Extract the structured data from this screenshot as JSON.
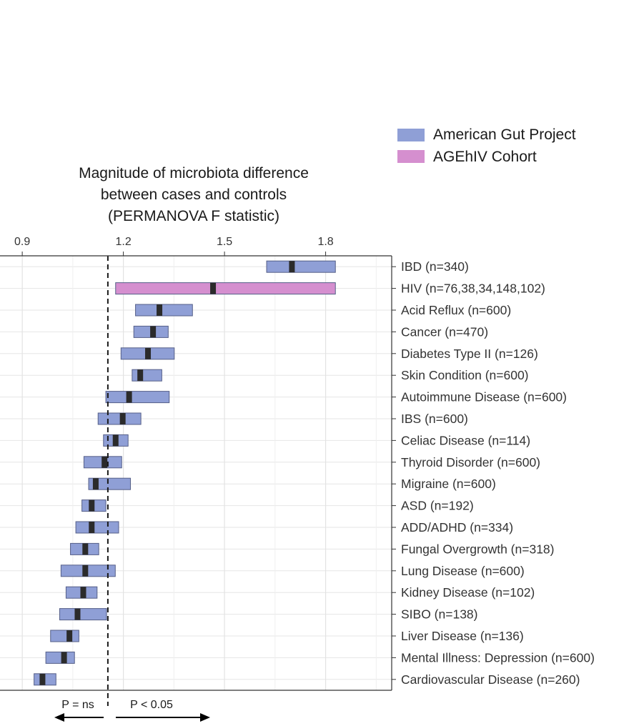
{
  "chart_data": {
    "type": "bar",
    "subtype": "range-with-median",
    "title_lines": [
      "Magnitude of microbiota difference",
      "between cases and controls",
      "(PERMANOVA F statistic)"
    ],
    "x_ticks": [
      {
        "value": 0.9,
        "label": "0.9"
      },
      {
        "value": 1.2,
        "label": "1.2"
      },
      {
        "value": 1.5,
        "label": "1.5"
      },
      {
        "value": 1.8,
        "label": "1.8"
      }
    ],
    "xlim": [
      0.834,
      1.996
    ],
    "threshold": 1.154,
    "series": [
      {
        "name": "American Gut Project",
        "color": "#8f9fd6"
      },
      {
        "name": "AGEhIV Cohort",
        "color": "#d58fcf"
      }
    ],
    "categories": [
      {
        "label": "IBD (n=340)",
        "low": 1.625,
        "median": 1.7,
        "high": 1.829,
        "series": 0
      },
      {
        "label": "HIV (n=76,38,34,148,102)",
        "low": 1.177,
        "median": 1.466,
        "high": 1.829,
        "series": 1
      },
      {
        "label": "Acid Reflux (n=600)",
        "low": 1.236,
        "median": 1.307,
        "high": 1.405,
        "series": 0
      },
      {
        "label": "Cancer (n=470)",
        "low": 1.231,
        "median": 1.288,
        "high": 1.333,
        "series": 0
      },
      {
        "label": "Diabetes Type II (n=126)",
        "low": 1.193,
        "median": 1.273,
        "high": 1.351,
        "series": 0
      },
      {
        "label": "Skin Condition (n=600)",
        "low": 1.226,
        "median": 1.25,
        "high": 1.314,
        "series": 0
      },
      {
        "label": "Autoimmune Disease (n=600)",
        "low": 1.148,
        "median": 1.217,
        "high": 1.336,
        "series": 0
      },
      {
        "label": "IBS (n=600)",
        "low": 1.125,
        "median": 1.198,
        "high": 1.252,
        "series": 0
      },
      {
        "label": "Celiac Disease (n=114)",
        "low": 1.141,
        "median": 1.177,
        "high": 1.214,
        "series": 0
      },
      {
        "label": "Thyroid Disorder (n=600)",
        "low": 1.083,
        "median": 1.144,
        "high": 1.195,
        "series": 0
      },
      {
        "label": "Migraine (n=600)",
        "low": 1.097,
        "median": 1.118,
        "high": 1.221,
        "series": 0
      },
      {
        "label": "ASD (n=192)",
        "low": 1.077,
        "median": 1.106,
        "high": 1.148,
        "series": 0
      },
      {
        "label": "ADD/ADHD (n=334)",
        "low": 1.059,
        "median": 1.106,
        "high": 1.186,
        "series": 0
      },
      {
        "label": "Fungal Overgrowth (n=318)",
        "low": 1.043,
        "median": 1.087,
        "high": 1.127,
        "series": 0
      },
      {
        "label": "Lung Disease (n=600)",
        "low": 1.015,
        "median": 1.087,
        "high": 1.176,
        "series": 0
      },
      {
        "label": "Kidney Disease (n=102)",
        "low": 1.03,
        "median": 1.081,
        "high": 1.122,
        "series": 0
      },
      {
        "label": "SIBO (n=138)",
        "low": 1.011,
        "median": 1.064,
        "high": 1.15,
        "series": 0
      },
      {
        "label": "Liver Disease (n=136)",
        "low": 0.984,
        "median": 1.04,
        "high": 1.068,
        "series": 0
      },
      {
        "label": "Mental Illness: Depression (n=600)",
        "low": 0.97,
        "median": 1.024,
        "high": 1.055,
        "series": 0
      },
      {
        "label": "Cardiovascular Disease (n=260)",
        "low": 0.935,
        "median": 0.96,
        "high": 1.0,
        "series": 0
      }
    ],
    "annotations": {
      "left": "P = ns",
      "right": "P < 0.05"
    }
  }
}
